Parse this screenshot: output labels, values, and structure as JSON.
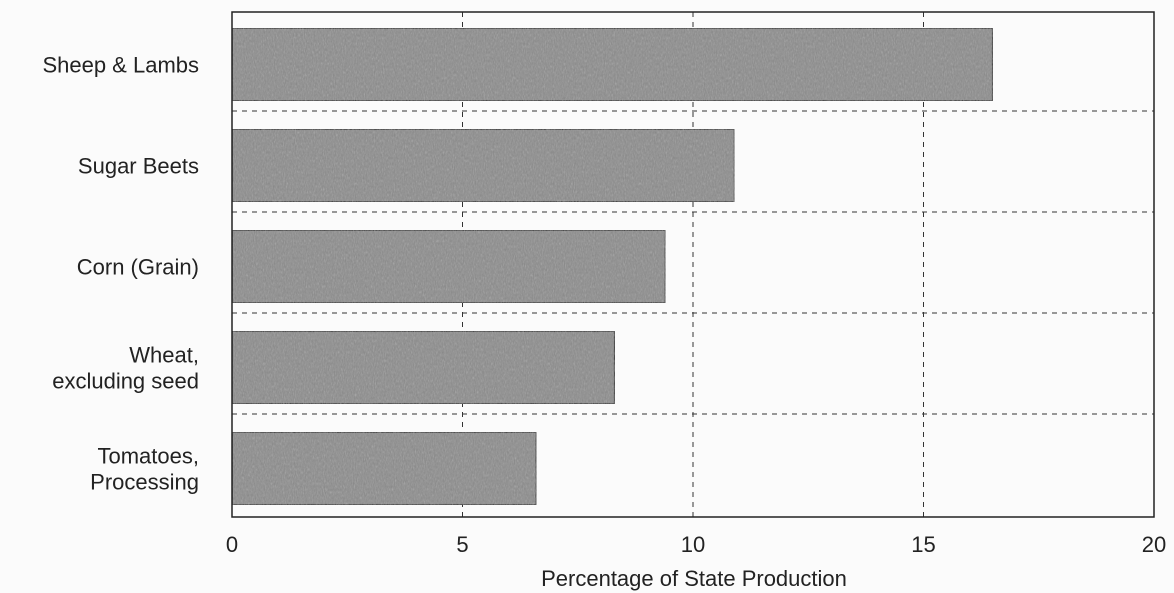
{
  "chart_data": {
    "type": "bar",
    "orientation": "horizontal",
    "categories": [
      [
        "Sheep & Lambs"
      ],
      [
        "Sugar Beets"
      ],
      [
        "Corn (Grain)"
      ],
      [
        "Wheat,",
        "excluding seed"
      ],
      [
        "Tomatoes,",
        "Processing"
      ]
    ],
    "values": [
      16.5,
      10.9,
      9.4,
      8.3,
      6.6
    ],
    "xlabel": "Percentage of State Production",
    "ylabel": "",
    "xlim": [
      0,
      20
    ],
    "xticks": [
      0,
      5,
      10,
      15,
      20
    ],
    "tick_labels": [
      "0",
      "5",
      "10",
      "15",
      "20"
    ],
    "grid": true,
    "bar_color": "#8a8a8a"
  }
}
